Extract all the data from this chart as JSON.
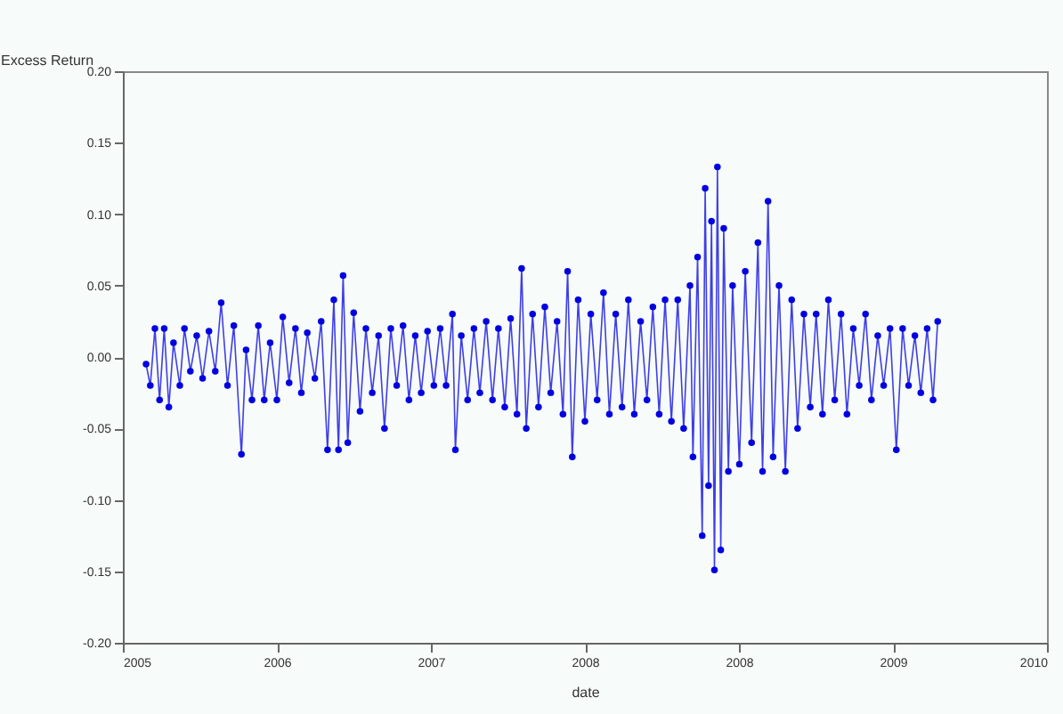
{
  "chart_data": {
    "type": "line",
    "xlabel": "date",
    "ylabel": "Excess Return",
    "marker": "circle",
    "line_style": "solid",
    "grid": false,
    "xlim": [
      "2005-01-01",
      "2010-12-31"
    ],
    "xticks": [
      {
        "value": "2005-01-01",
        "label": "2005"
      },
      {
        "value": "2006-01-01",
        "label": "2006"
      },
      {
        "value": "2007-01-01",
        "label": "2007"
      },
      {
        "value": "2008-01-01",
        "label": "2008"
      },
      {
        "value": "2008-12-31",
        "label": "2008"
      },
      {
        "value": "2009-12-31",
        "label": "2009"
      },
      {
        "value": "2010-12-31",
        "label": "2010"
      }
    ],
    "ylim": [
      -0.2,
      0.2
    ],
    "yticks": [
      {
        "value": -0.2,
        "label": "-0.20"
      },
      {
        "value": -0.15,
        "label": "-0.15"
      },
      {
        "value": -0.1,
        "label": "-0.10"
      },
      {
        "value": -0.05,
        "label": "-0.05"
      },
      {
        "value": 0,
        "label": "0.00"
      },
      {
        "value": 0.05,
        "label": "0.05"
      },
      {
        "value": 0.1,
        "label": "0.10"
      },
      {
        "value": 0.15,
        "label": "0.15"
      },
      {
        "value": 0.2,
        "label": "0.20"
      }
    ],
    "series": [
      {
        "color": "#0000e0",
        "x": [
          "2005-02-25",
          "2005-03-07",
          "2005-03-18",
          "2005-03-29",
          "2005-04-09",
          "2005-04-20",
          "2005-05-01",
          "2005-05-16",
          "2005-05-27",
          "2005-06-10",
          "2005-06-25",
          "2005-07-09",
          "2005-07-24",
          "2005-08-08",
          "2005-08-22",
          "2005-09-06",
          "2005-09-21",
          "2005-10-09",
          "2005-10-20",
          "2005-11-03",
          "2005-11-18",
          "2005-12-02",
          "2005-12-16",
          "2006-01-01",
          "2006-01-15",
          "2006-01-30",
          "2006-02-14",
          "2006-02-28",
          "2006-03-14",
          "2006-04-01",
          "2006-04-16",
          "2006-05-01",
          "2006-05-16",
          "2006-05-27",
          "2006-06-07",
          "2006-06-18",
          "2006-07-02",
          "2006-07-17",
          "2006-07-31",
          "2006-08-15",
          "2006-08-30",
          "2006-09-13",
          "2006-09-28",
          "2006-10-12",
          "2006-10-27",
          "2006-11-10",
          "2006-11-25",
          "2006-12-09",
          "2006-12-24",
          "2007-01-08",
          "2007-01-23",
          "2007-02-06",
          "2007-02-21",
          "2007-02-28",
          "2007-03-14",
          "2007-03-29",
          "2007-04-13",
          "2007-04-27",
          "2007-05-12",
          "2007-05-27",
          "2007-06-10",
          "2007-06-25",
          "2007-07-09",
          "2007-07-24",
          "2007-08-04",
          "2007-08-15",
          "2007-08-30",
          "2007-09-13",
          "2007-09-28",
          "2007-10-12",
          "2007-10-27",
          "2007-11-10",
          "2007-11-21",
          "2007-12-02",
          "2007-12-16",
          "2008-01-01",
          "2008-01-15",
          "2008-01-30",
          "2008-02-14",
          "2008-02-28",
          "2008-03-14",
          "2008-03-29",
          "2008-04-13",
          "2008-04-27",
          "2008-05-12",
          "2008-05-27",
          "2008-06-10",
          "2008-06-25",
          "2008-07-09",
          "2008-07-24",
          "2008-08-08",
          "2008-08-22",
          "2008-09-06",
          "2008-09-13",
          "2008-09-24",
          "2008-10-05",
          "2008-10-12",
          "2008-10-20",
          "2008-10-27",
          "2008-11-03",
          "2008-11-10",
          "2008-11-18",
          "2008-11-25",
          "2008-12-06",
          "2008-12-16",
          "2009-01-01",
          "2009-01-15",
          "2009-01-30",
          "2009-02-14",
          "2009-02-25",
          "2009-03-10",
          "2009-03-22",
          "2009-04-05",
          "2009-04-20",
          "2009-05-05",
          "2009-05-19",
          "2009-06-03",
          "2009-06-18",
          "2009-07-02",
          "2009-07-17",
          "2009-07-31",
          "2009-08-15",
          "2009-08-30",
          "2009-09-13",
          "2009-09-28",
          "2009-10-12",
          "2009-10-27",
          "2009-11-10",
          "2009-11-25",
          "2009-12-09",
          "2009-12-24",
          "2010-01-08",
          "2010-01-23",
          "2010-02-06",
          "2010-02-21",
          "2010-03-07",
          "2010-03-22",
          "2010-04-05",
          "2010-04-16"
        ],
        "values": [
          -0.005,
          -0.02,
          0.02,
          -0.03,
          0.02,
          -0.035,
          0.01,
          -0.02,
          0.02,
          -0.01,
          0.015,
          -0.015,
          0.018,
          -0.01,
          0.038,
          -0.02,
          0.022,
          -0.068,
          0.005,
          -0.03,
          0.022,
          -0.03,
          0.01,
          -0.03,
          0.028,
          -0.018,
          0.02,
          -0.025,
          0.017,
          -0.015,
          0.025,
          -0.065,
          0.04,
          -0.065,
          0.057,
          -0.06,
          0.031,
          -0.038,
          0.02,
          -0.025,
          0.015,
          -0.05,
          0.02,
          -0.02,
          0.022,
          -0.03,
          0.015,
          -0.025,
          0.018,
          -0.02,
          0.02,
          -0.02,
          0.03,
          -0.065,
          0.015,
          -0.03,
          0.02,
          -0.025,
          0.025,
          -0.03,
          0.02,
          -0.035,
          0.027,
          -0.04,
          0.062,
          -0.05,
          0.03,
          -0.035,
          0.035,
          -0.025,
          0.025,
          -0.04,
          0.06,
          -0.07,
          0.04,
          -0.045,
          0.03,
          -0.03,
          0.045,
          -0.04,
          0.03,
          -0.035,
          0.04,
          -0.04,
          0.025,
          -0.03,
          0.035,
          -0.04,
          0.04,
          -0.045,
          0.04,
          -0.05,
          0.05,
          -0.07,
          0.07,
          -0.125,
          0.118,
          -0.09,
          0.095,
          -0.149,
          0.133,
          -0.135,
          0.09,
          -0.08,
          0.05,
          -0.075,
          0.06,
          -0.06,
          0.08,
          -0.08,
          0.109,
          -0.07,
          0.05,
          -0.08,
          0.04,
          -0.05,
          0.03,
          -0.035,
          0.03,
          -0.04,
          0.04,
          -0.03,
          0.03,
          -0.04,
          0.02,
          -0.02,
          0.03,
          -0.03,
          0.015,
          -0.02,
          0.02,
          -0.065,
          0.02,
          -0.02,
          0.015,
          -0.025,
          0.02,
          -0.03,
          0.025
        ]
      }
    ]
  }
}
